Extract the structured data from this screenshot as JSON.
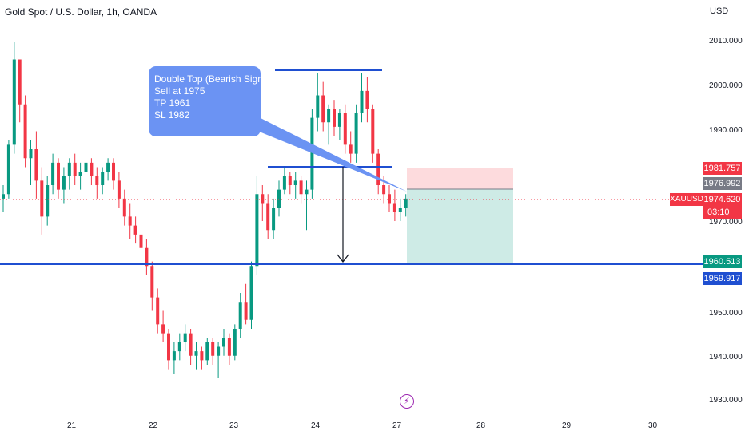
{
  "header": {
    "title": "Gold Spot / U.S. Dollar, 1h, OANDA",
    "currency": "USD"
  },
  "callout": {
    "lines": [
      "Double Top (Bearish Signal)",
      "Sell at 1975",
      "TP 1961",
      "SL 1982"
    ]
  },
  "price_scale": {
    "ticks": [
      "2010.000",
      "2000.000",
      "1990.000",
      "1970.000",
      "1950.000",
      "1940.000",
      "1930.000"
    ],
    "tags": {
      "stop": "1981.757",
      "entry": "1976.992",
      "last": "1974.620",
      "countdown": "03:10",
      "tp": "1960.513",
      "support": "1959.917"
    },
    "symbol": "XAUUSD"
  },
  "time_axis": {
    "labels": [
      "21",
      "22",
      "23",
      "24",
      "27",
      "28",
      "29",
      "30"
    ]
  },
  "colors": {
    "up": "#089981",
    "down": "#f23645",
    "line": "#1f4fd1",
    "callout": "#6b93f3",
    "last": "#f23645"
  },
  "icons": {
    "event": "lightning-icon"
  },
  "chart_data": {
    "type": "candlestick",
    "ylim": [
      1926,
      2015
    ],
    "candles": [
      [
        1975,
        1978,
        1972,
        1976
      ],
      [
        1976,
        1988,
        1975,
        1987
      ],
      [
        1987,
        2010,
        1985,
        2006
      ],
      [
        2006,
        2006,
        1992,
        1996
      ],
      [
        1996,
        1998,
        1982,
        1984
      ],
      [
        1984,
        1988,
        1978,
        1986
      ],
      [
        1986,
        1990,
        1975,
        1979
      ],
      [
        1979,
        1982,
        1967,
        1971
      ],
      [
        1971,
        1980,
        1969,
        1978
      ],
      [
        1978,
        1985,
        1976,
        1983
      ],
      [
        1983,
        1984,
        1975,
        1977
      ],
      [
        1977,
        1982,
        1974,
        1980
      ],
      [
        1980,
        1984,
        1977,
        1983
      ],
      [
        1983,
        1985,
        1978,
        1980
      ],
      [
        1980,
        1983,
        1977,
        1981
      ],
      [
        1981,
        1985,
        1979,
        1983
      ],
      [
        1983,
        1984,
        1978,
        1980
      ],
      [
        1980,
        1982,
        1975,
        1978
      ],
      [
        1978,
        1982,
        1976,
        1981
      ],
      [
        1981,
        1984,
        1979,
        1983
      ],
      [
        1983,
        1984,
        1977,
        1979
      ],
      [
        1979,
        1981,
        1973,
        1975
      ],
      [
        1975,
        1977,
        1969,
        1971
      ],
      [
        1971,
        1974,
        1966,
        1969
      ],
      [
        1969,
        1971,
        1965,
        1967
      ],
      [
        1967,
        1968,
        1962,
        1964
      ],
      [
        1964,
        1966,
        1958,
        1960
      ],
      [
        1960,
        1961,
        1950,
        1953
      ],
      [
        1953,
        1955,
        1945,
        1947
      ],
      [
        1947,
        1950,
        1943,
        1945
      ],
      [
        1945,
        1946,
        1937,
        1939
      ],
      [
        1939,
        1943,
        1936,
        1941
      ],
      [
        1941,
        1945,
        1939,
        1943
      ],
      [
        1943,
        1947,
        1941,
        1945
      ],
      [
        1945,
        1946,
        1938,
        1940
      ],
      [
        1940,
        1943,
        1937,
        1941
      ],
      [
        1941,
        1942,
        1937,
        1939
      ],
      [
        1939,
        1944,
        1938,
        1943
      ],
      [
        1943,
        1944,
        1938,
        1940
      ],
      [
        1940,
        1943,
        1935,
        1942
      ],
      [
        1942,
        1946,
        1940,
        1944
      ],
      [
        1944,
        1945,
        1938,
        1940
      ],
      [
        1940,
        1947,
        1939,
        1946
      ],
      [
        1946,
        1954,
        1944,
        1952
      ],
      [
        1952,
        1956,
        1947,
        1948
      ],
      [
        1948,
        1961,
        1946,
        1960
      ],
      [
        1960,
        1980,
        1958,
        1976
      ],
      [
        1976,
        1978,
        1970,
        1974
      ],
      [
        1974,
        1976,
        1966,
        1968
      ],
      [
        1968,
        1975,
        1966,
        1973
      ],
      [
        1973,
        1979,
        1971,
        1977
      ],
      [
        1977,
        1982,
        1976,
        1980
      ],
      [
        1980,
        1981,
        1976,
        1978
      ],
      [
        1978,
        1981,
        1975,
        1979
      ],
      [
        1979,
        1980,
        1974,
        1976
      ],
      [
        1976,
        1979,
        1968,
        1977
      ],
      [
        1977,
        1995,
        1975,
        1993
      ],
      [
        1993,
        2003,
        1990,
        1998
      ],
      [
        1998,
        2001,
        1990,
        1992
      ],
      [
        1992,
        1996,
        1987,
        1995
      ],
      [
        1995,
        1997,
        1989,
        1991
      ],
      [
        1991,
        1995,
        1988,
        1994
      ],
      [
        1994,
        1996,
        1985,
        1987
      ],
      [
        1987,
        1990,
        1983,
        1985
      ],
      [
        1985,
        1996,
        1983,
        1994
      ],
      [
        1994,
        2003,
        1992,
        1999
      ],
      [
        1999,
        2002,
        1992,
        1995
      ],
      [
        1995,
        1996,
        1983,
        1985
      ],
      [
        1985,
        1986,
        1976,
        1978
      ],
      [
        1978,
        1980,
        1974,
        1976
      ],
      [
        1976,
        1978,
        1972,
        1974
      ],
      [
        1974,
        1977,
        1970,
        1972
      ],
      [
        1972,
        1975,
        1970,
        1973
      ],
      [
        1973,
        1976,
        1971,
        1975
      ]
    ],
    "annotations": [
      {
        "type": "hline",
        "label": "double-top",
        "y": 2003.0,
        "x": [
          344,
          478
        ]
      },
      {
        "type": "hline",
        "label": "neckline",
        "y": 1982.5,
        "x": [
          335,
          491
        ]
      },
      {
        "type": "hline",
        "label": "support",
        "y": 1960.5
      }
    ],
    "position": {
      "entry": 1976.992,
      "stop": 1981.757,
      "target": 1960.513
    }
  }
}
